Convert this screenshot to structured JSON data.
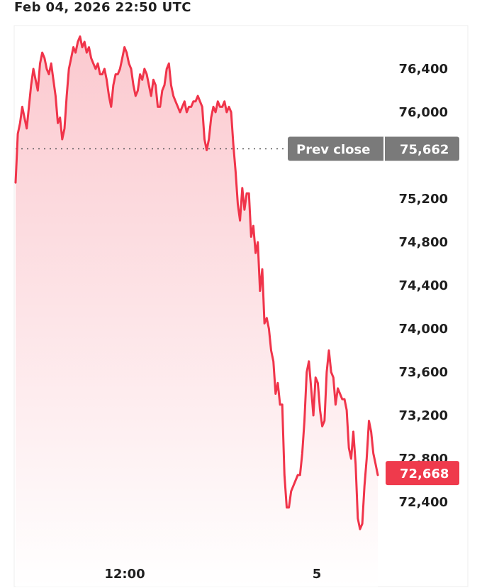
{
  "timestamp": "Feb 04, 2026 22:50 UTC",
  "colors": {
    "line": "#f0344a",
    "fill_top": "#fbc9cf",
    "fill_bottom": "#ffffff",
    "prev_close_badge": "#7a7a7a",
    "last_price_badge": "#ef3a4c",
    "text": "#1f1f1f"
  },
  "chart_data": {
    "type": "area",
    "title": "",
    "xlabel": "",
    "ylabel": "",
    "x_ticks": [
      "12:00",
      "5"
    ],
    "y_ticks": [
      "76,400",
      "76,000",
      "75,200",
      "74,800",
      "74,400",
      "74,000",
      "73,600",
      "73,200",
      "72,800",
      "72,400"
    ],
    "ylim": [
      72000,
      76750
    ],
    "grid": false,
    "prev_close": {
      "label": "Prev close",
      "value": 75662,
      "value_label": "75,662"
    },
    "last_price": {
      "value": 72668,
      "value_label": "72,668"
    },
    "series": [
      {
        "values": [
          75350,
          75800,
          75900,
          76050,
          75950,
          75850,
          76050,
          76250,
          76400,
          76300,
          76200,
          76450,
          76550,
          76500,
          76400,
          76350,
          76450,
          76300,
          76150,
          75900,
          75950,
          75750,
          75850,
          76150,
          76400,
          76500,
          76600,
          76550,
          76650,
          76700,
          76600,
          76650,
          76550,
          76600,
          76500,
          76450,
          76400,
          76450,
          76350,
          76350,
          76400,
          76300,
          76150,
          76050,
          76250,
          76350,
          76350,
          76400,
          76500,
          76600,
          76550,
          76450,
          76400,
          76250,
          76150,
          76200,
          76350,
          76300,
          76400,
          76350,
          76250,
          76150,
          76300,
          76250,
          76050,
          76050,
          76200,
          76250,
          76400,
          76450,
          76250,
          76150,
          76100,
          76050,
          76000,
          76050,
          76100,
          76000,
          76050,
          76050,
          76100,
          76100,
          76150,
          76100,
          76050,
          75750,
          75650,
          75750,
          75950,
          76050,
          76000,
          76100,
          76050,
          76050,
          76100,
          76000,
          76050,
          76000,
          75700,
          75450,
          75150,
          75000,
          75300,
          75100,
          75250,
          75250,
          74850,
          74950,
          74700,
          74800,
          74350,
          74550,
          74050,
          74100,
          74000,
          73800,
          73700,
          73400,
          73500,
          73300,
          73300,
          72650,
          72350,
          72350,
          72500,
          72550,
          72600,
          72650,
          72650,
          72850,
          73150,
          73600,
          73700,
          73450,
          73200,
          73550,
          73500,
          73250,
          73100,
          73150,
          73600,
          73800,
          73600,
          73550,
          73300,
          73450,
          73400,
          73350,
          73350,
          73250,
          72900,
          72800,
          73050,
          72750,
          72250,
          72150,
          72200,
          72550,
          72800,
          73150,
          73050,
          72850,
          72750,
          72650
        ]
      }
    ]
  }
}
